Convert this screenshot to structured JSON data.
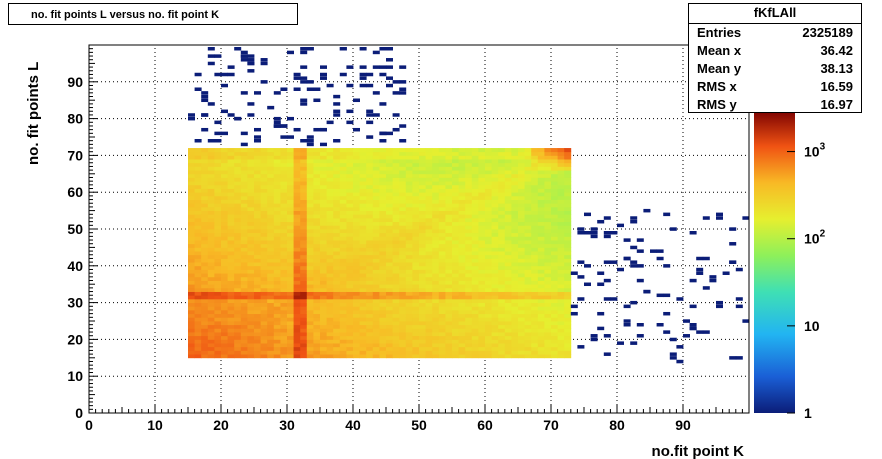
{
  "title": "no. fit points L versus no. fit point K",
  "stats": {
    "name": "fKfLAll",
    "rows": [
      {
        "label": "Entries",
        "value": "2325189"
      },
      {
        "label": "Mean x",
        "value": "36.42"
      },
      {
        "label": "Mean y",
        "value": "38.13"
      },
      {
        "label": "RMS x",
        "value": "16.59"
      },
      {
        "label": "RMS y",
        "value": "16.97"
      }
    ]
  },
  "chart_data": {
    "type": "heatmap",
    "title": "no. fit points L versus no. fit point K",
    "xlabel": "no.fit point K",
    "ylabel": "no. fit points  L",
    "xlim": [
      0,
      100
    ],
    "ylim": [
      0,
      100
    ],
    "x_ticks": [
      0,
      10,
      20,
      30,
      40,
      50,
      60,
      70,
      80,
      90
    ],
    "y_ticks": [
      0,
      10,
      20,
      30,
      40,
      50,
      60,
      70,
      80,
      90
    ],
    "grid": true,
    "z_scale": "log",
    "z_range": [
      1,
      3000
    ],
    "z_tick_labels": [
      {
        "base": "1",
        "exp": ""
      },
      {
        "base": "10",
        "exp": ""
      },
      {
        "base": "10",
        "exp": "2"
      },
      {
        "base": "10",
        "exp": "3"
      }
    ],
    "dense_region": {
      "x": [
        15,
        73
      ],
      "y": [
        15,
        72
      ]
    },
    "colors": {
      "low": "#0b1d78",
      "high": "#7a0000"
    }
  }
}
